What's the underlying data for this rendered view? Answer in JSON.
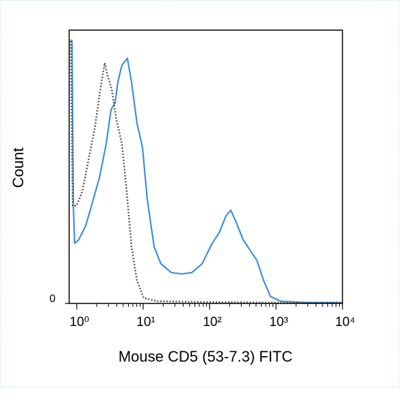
{
  "chart_data": {
    "type": "line",
    "xlabel": "Mouse CD5 (53-7.3) FITC",
    "ylabel": "Count",
    "xscale": "log",
    "xlim": [
      0.77,
      10000
    ],
    "ylim": [
      0,
      100
    ],
    "xticks": [
      {
        "value": 1,
        "label": "10⁰"
      },
      {
        "value": 10,
        "label": "10¹"
      },
      {
        "value": 100,
        "label": "10²"
      },
      {
        "value": 1000,
        "label": "10³"
      },
      {
        "value": 10000,
        "label": "10⁴"
      }
    ],
    "x_minor_ticks": [
      2,
      3,
      4,
      5,
      6,
      7,
      8,
      9,
      20,
      30,
      40,
      50,
      60,
      70,
      80,
      90,
      200,
      300,
      400,
      500,
      600,
      700,
      800,
      900,
      2000,
      3000,
      4000,
      5000,
      6000,
      7000,
      8000,
      9000
    ],
    "yticks": [
      0
    ],
    "series": [
      {
        "color": "#3b8fe0",
        "dash": false,
        "x": [
          0.81,
          0.85,
          0.89,
          0.93,
          1.07,
          1.36,
          1.73,
          2.19,
          2.78,
          3.28,
          3.78,
          4.16,
          4.79,
          5.79,
          6.68,
          8.08,
          9.77,
          11.5,
          14.6,
          18.5,
          26.5,
          37.8,
          54.0,
          77.0,
          110,
          139,
          177,
          209,
          252,
          320,
          406,
          514,
          652,
          827,
          1181,
          3055,
          10000
        ],
        "values": [
          96.5,
          96,
          35.8,
          22,
          23.3,
          28.3,
          37.1,
          45.9,
          58.4,
          70.9,
          73.4,
          81,
          87.2,
          89.7,
          81,
          65.9,
          57.1,
          38.3,
          20.8,
          14.5,
          11.3,
          10.8,
          11.3,
          14.5,
          22.1,
          25.8,
          32.1,
          34.1,
          29.6,
          23.3,
          19.5,
          15.8,
          8.3,
          2.5,
          0.8,
          0.3,
          0.3
        ]
      },
      {
        "color": "#555555",
        "dash": true,
        "x": [
          0.81,
          0.87,
          1.0,
          1.21,
          1.53,
          1.85,
          2.19,
          2.46,
          2.64,
          2.91,
          3.36,
          3.96,
          4.79,
          5.65,
          6.68,
          8.08,
          10.2,
          16.4,
          86.7,
          930,
          10000
        ],
        "values": [
          96,
          35.8,
          35.8,
          40.9,
          53.4,
          63.4,
          75.9,
          83.5,
          88,
          83.5,
          78.4,
          67.2,
          58.4,
          40.9,
          20.8,
          8.3,
          2,
          0.8,
          0.5,
          0.3,
          0.3
        ]
      }
    ]
  }
}
